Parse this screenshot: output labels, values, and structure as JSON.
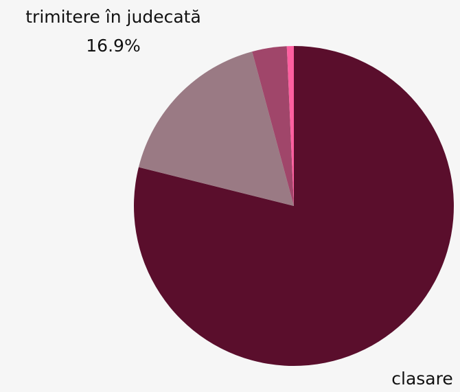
{
  "chart_data": {
    "type": "pie",
    "categories": [
      "clasare",
      "trimitere în judecată",
      null,
      null
    ],
    "values": [
      78.9,
      16.9,
      3.5,
      0.7
    ],
    "value_labels": [
      "78.9%",
      "16.9%",
      null,
      null
    ],
    "colors": [
      "#5a0e2c",
      "#9a7a84",
      "#a0466a",
      "#ff5fa0"
    ]
  }
}
